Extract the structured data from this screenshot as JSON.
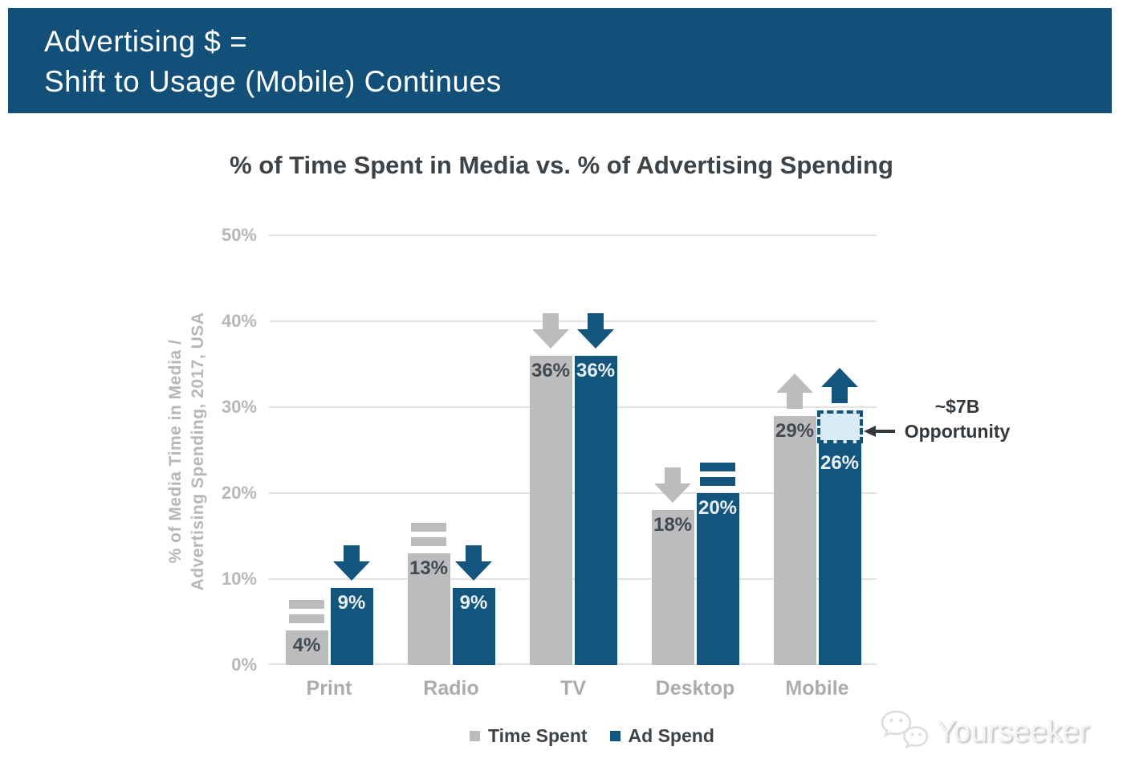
{
  "header": {
    "line1": "Advertising $ =",
    "line2": "Shift to Usage (Mobile) Continues"
  },
  "chart_data": {
    "type": "bar",
    "title": "% of Time Spent in Media vs. % of Advertising Spending",
    "ylabel": "% of Media Time in Media / Advertising Spending, 2017, USA",
    "ylabel_line1": "% of Media Time in Media /",
    "ylabel_line2": "Advertising Spending, 2017, USA",
    "categories": [
      "Print",
      "Radio",
      "TV",
      "Desktop",
      "Mobile"
    ],
    "series": [
      {
        "name": "Time Spent",
        "color": "#BABCBE",
        "values": [
          4,
          13,
          36,
          18,
          29
        ],
        "value_labels": [
          "4%",
          "13%",
          "36%",
          "18%",
          "29%"
        ],
        "trend_indicators": [
          "equal",
          "equal",
          "down",
          "down",
          "up"
        ]
      },
      {
        "name": "Ad Spend",
        "color": "#14557E",
        "values": [
          9,
          9,
          36,
          20,
          26
        ],
        "value_labels": [
          "9%",
          "9%",
          "36%",
          "20%",
          "26%"
        ],
        "trend_indicators": [
          "down",
          "down",
          "down",
          "equal",
          "up"
        ]
      }
    ],
    "ylim": [
      0,
      50
    ],
    "yticks": [
      "0%",
      "10%",
      "20%",
      "30%",
      "40%",
      "50%"
    ],
    "grid": true,
    "legend_position": "bottom",
    "annotation": {
      "line1": "~$7B",
      "line2": "Opportunity"
    },
    "extension": {
      "category": "Mobile",
      "series": "Ad Spend",
      "from": 26,
      "to": 29.6
    }
  },
  "watermark": {
    "text": "Yourseeker"
  },
  "colors": {
    "banner_bg": "#124F79",
    "banner_text": "#FFFFFF",
    "bar_time_spent": "#BABCBE",
    "bar_ad_spend": "#14557E",
    "label_on_gray": "#46494D",
    "label_on_blue": "#E8F1F8",
    "grid": "#E2E2E2",
    "axis_text": "#B5B7B9",
    "category_text": "#AAADAF",
    "title_text": "#3E4347",
    "legend_text": "#3E4347",
    "annotation_text": "#33383C",
    "annotation_arrow": "#33383C",
    "opportunity_fill": "#D9EBF6",
    "opportunity_border": "#15537D",
    "watermark_text": "#F4F4F4"
  }
}
